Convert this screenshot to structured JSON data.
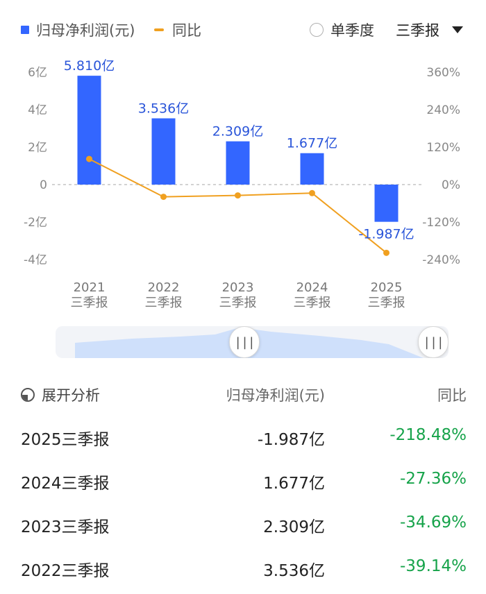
{
  "legend": {
    "bar_label": "归母净利润(元)",
    "line_label": "同比",
    "bar_color": "#3366ff",
    "line_color": "#f0a020"
  },
  "controls": {
    "single_quarter_label": "单季度",
    "period_label": "三季报"
  },
  "chart_data": {
    "type": "bar",
    "categories": [
      "2021 三季报",
      "2022 三季报",
      "2023 三季报",
      "2024 三季报",
      "2025 三季报"
    ],
    "category_lines": [
      [
        "2021",
        "三季报"
      ],
      [
        "2022",
        "三季报"
      ],
      [
        "2023",
        "三季报"
      ],
      [
        "2024",
        "三季报"
      ],
      [
        "2025",
        "三季报"
      ]
    ],
    "series": [
      {
        "name": "归母净利润(元)",
        "type": "bar",
        "axis": "left",
        "values": [
          5.81,
          3.536,
          2.309,
          1.677,
          -1.987
        ],
        "labels": [
          "5.810亿",
          "3.536亿",
          "2.309亿",
          "1.677亿",
          "-1.987亿"
        ]
      },
      {
        "name": "同比",
        "type": "line",
        "axis": "right",
        "values": [
          82,
          -39.14,
          -34.69,
          -27.36,
          -218.48
        ]
      }
    ],
    "left_axis": {
      "ylim": [
        -4,
        6
      ],
      "ticks": [
        6,
        4,
        2,
        0,
        -2,
        -4
      ],
      "tick_labels": [
        "6亿",
        "4亿",
        "2亿",
        "0",
        "-2亿",
        "-4亿"
      ]
    },
    "right_axis": {
      "ylim": [
        -240,
        360
      ],
      "ticks": [
        360,
        240,
        120,
        0,
        -120,
        -240
      ],
      "tick_labels": [
        "360%",
        "240%",
        "120%",
        "0%",
        "-120%",
        "-240%"
      ]
    },
    "grid": "dashed zero line"
  },
  "table": {
    "expand_label": "展开分析",
    "col_value": "归母净利润(元)",
    "col_yoy": "同比",
    "rows": [
      {
        "period": "2025三季报",
        "value": "-1.987亿",
        "yoy": "-218.48%"
      },
      {
        "period": "2024三季报",
        "value": "1.677亿",
        "yoy": "-27.36%"
      },
      {
        "period": "2023三季报",
        "value": "2.309亿",
        "yoy": "-34.69%"
      },
      {
        "period": "2022三季报",
        "value": "3.536亿",
        "yoy": "-39.14%"
      }
    ]
  },
  "slider": {
    "handle_glyph": "|||"
  }
}
